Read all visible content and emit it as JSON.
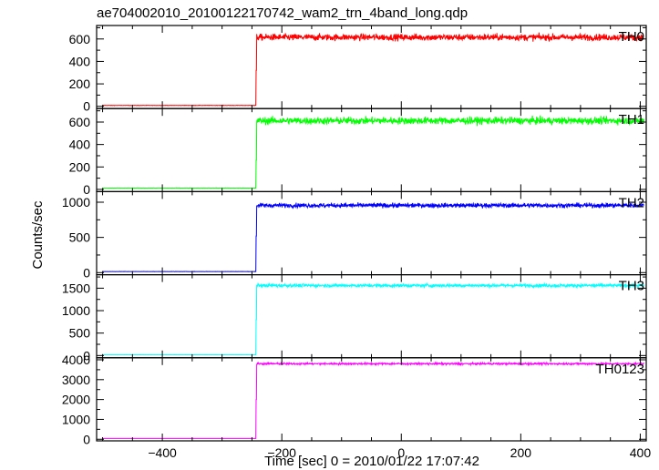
{
  "chart_data": {
    "type": "line",
    "title": "ae704002010_20100122170742_wam2_trn_4band_long.qdp",
    "xlabel": "Time [sec] 0 = 2010/01/22 17:07:42",
    "ylabel": "Counts/sec",
    "xlim": [
      -510,
      410
    ],
    "x_ticks": [
      -400,
      -200,
      0,
      200,
      400
    ],
    "step_time": -243,
    "grid": false,
    "panels": [
      {
        "name": "TH0",
        "color": "#ff0000",
        "ylim": [
          -20,
          720
        ],
        "y_ticks": [
          0,
          200,
          400,
          600
        ],
        "baseline": 8,
        "level": 615,
        "noise": 28,
        "transient": 320
      },
      {
        "name": "TH1",
        "color": "#00ff00",
        "ylim": [
          -20,
          720
        ],
        "y_ticks": [
          0,
          200,
          400,
          600
        ],
        "baseline": 12,
        "level": 612,
        "noise": 30,
        "transient": 260
      },
      {
        "name": "TH2",
        "color": "#0000ff",
        "ylim": [
          -30,
          1150
        ],
        "y_ticks": [
          0,
          500,
          1000
        ],
        "baseline": 15,
        "level": 955,
        "noise": 30,
        "transient": 520
      },
      {
        "name": "TH3",
        "color": "#00ffff",
        "ylim": [
          -50,
          1800
        ],
        "y_ticks": [
          0,
          500,
          1000,
          1500
        ],
        "baseline": 15,
        "level": 1560,
        "noise": 35,
        "transient": 800
      },
      {
        "name": "TH0123",
        "color": "#ff00ff",
        "ylim": [
          -80,
          4100
        ],
        "y_ticks": [
          0,
          1000,
          2000,
          3000,
          4000
        ],
        "baseline": 40,
        "level": 3800,
        "noise": 45,
        "transient": 2000
      }
    ]
  }
}
